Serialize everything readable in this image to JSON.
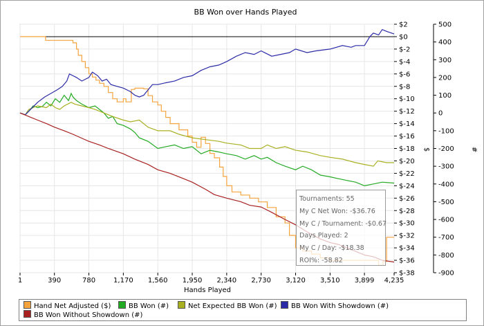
{
  "window": {
    "title": "BB Won over Hands Played"
  },
  "chart_data": {
    "type": "line",
    "title": "BB Won over Hands Played",
    "xlabel": "Hands Played",
    "ylabel_right_dollar": "$",
    "ylabel_right_count": "#",
    "xlim": [
      1,
      4235
    ],
    "x_ticks": [
      1,
      390,
      780,
      1170,
      1560,
      1950,
      2340,
      2730,
      3120,
      3510,
      3899,
      4235
    ],
    "x_tick_labels": [
      "1",
      "390",
      "780",
      "1,170",
      "1,560",
      "1,950",
      "2,340",
      "2,730",
      "3,120",
      "3,510",
      "3,899",
      "4,235"
    ],
    "ylim_dollar": [
      -38,
      2
    ],
    "dollar_ticks": [
      2,
      0,
      -2,
      -4,
      -6,
      -8,
      -10,
      -12,
      -14,
      -16,
      -18,
      -20,
      -22,
      -24,
      -26,
      -28,
      -30,
      -32,
      -34,
      -36,
      -38
    ],
    "dollar_tick_labels": [
      "$2",
      "$0",
      "$-2",
      "$-4",
      "$-6",
      "$-8",
      "$-10",
      "$-12",
      "$-14",
      "$-16",
      "$-18",
      "$-20",
      "$-22",
      "$-24",
      "$-26",
      "$-28",
      "$-30",
      "$-32",
      "$-34",
      "$-36",
      "$-38"
    ],
    "ylim_count": [
      -900,
      500
    ],
    "count_ticks": [
      500,
      400,
      300,
      200,
      100,
      0,
      -100,
      -200,
      -300,
      -400,
      -500,
      -600,
      -700,
      -800,
      -900
    ],
    "count_tick_labels": [
      "500",
      "400",
      "300",
      "200",
      "100",
      "0",
      "-100",
      "-200",
      "-300",
      "-400",
      "-500",
      "-600",
      "-700",
      "-800",
      "-900"
    ],
    "series": [
      {
        "name": "Hand Net Adjusted ($)",
        "axis": "dollar",
        "color": "#f5a33c",
        "step": true,
        "points": [
          [
            1,
            0
          ],
          [
            270,
            0
          ],
          [
            290,
            -0.6
          ],
          [
            580,
            -0.6
          ],
          [
            600,
            -1
          ],
          [
            640,
            -2
          ],
          [
            660,
            -3
          ],
          [
            700,
            -4
          ],
          [
            740,
            -5
          ],
          [
            780,
            -6
          ],
          [
            820,
            -6.5
          ],
          [
            860,
            -7
          ],
          [
            900,
            -7.5
          ],
          [
            950,
            -8
          ],
          [
            1000,
            -9
          ],
          [
            1050,
            -10
          ],
          [
            1100,
            -10.5
          ],
          [
            1170,
            -10
          ],
          [
            1200,
            -10.5
          ],
          [
            1260,
            -8.5
          ],
          [
            1300,
            -8.3
          ],
          [
            1400,
            -8.4
          ],
          [
            1450,
            -9.5
          ],
          [
            1500,
            -10.5
          ],
          [
            1560,
            -11
          ],
          [
            1600,
            -12
          ],
          [
            1650,
            -13
          ],
          [
            1700,
            -14
          ],
          [
            1800,
            -15
          ],
          [
            1900,
            -16
          ],
          [
            1950,
            -17
          ],
          [
            2000,
            -17.8
          ],
          [
            2050,
            -16.2
          ],
          [
            2100,
            -17.2
          ],
          [
            2150,
            -18.8
          ],
          [
            2200,
            -19.5
          ],
          [
            2260,
            -21
          ],
          [
            2300,
            -22.5
          ],
          [
            2340,
            -24
          ],
          [
            2400,
            -25
          ],
          [
            2500,
            -25.5
          ],
          [
            2600,
            -26
          ],
          [
            2700,
            -26.6
          ],
          [
            2800,
            -27.5
          ],
          [
            2900,
            -29
          ],
          [
            3000,
            -30
          ],
          [
            3050,
            -32
          ],
          [
            3120,
            -34
          ],
          [
            3200,
            -34.5
          ],
          [
            3300,
            -35
          ],
          [
            3400,
            -35.6
          ],
          [
            3500,
            -36
          ],
          [
            3700,
            -36
          ],
          [
            3899,
            -36
          ],
          [
            4060,
            -36.8
          ],
          [
            4110,
            -36.2
          ],
          [
            4150,
            -32.3
          ],
          [
            4235,
            -32.3
          ]
        ]
      },
      {
        "name": "BB Won (#)",
        "axis": "count",
        "color": "#22aa22",
        "step": false,
        "points": [
          [
            1,
            0
          ],
          [
            60,
            -10
          ],
          [
            100,
            10
          ],
          [
            150,
            40
          ],
          [
            200,
            30
          ],
          [
            250,
            35
          ],
          [
            300,
            60
          ],
          [
            350,
            40
          ],
          [
            400,
            80
          ],
          [
            450,
            60
          ],
          [
            500,
            100
          ],
          [
            550,
            70
          ],
          [
            580,
            110
          ],
          [
            600,
            90
          ],
          [
            640,
            70
          ],
          [
            700,
            50
          ],
          [
            780,
            30
          ],
          [
            850,
            40
          ],
          [
            900,
            20
          ],
          [
            950,
            0
          ],
          [
            1000,
            -30
          ],
          [
            1050,
            -20
          ],
          [
            1100,
            -60
          ],
          [
            1170,
            -70
          ],
          [
            1250,
            -90
          ],
          [
            1300,
            -110
          ],
          [
            1350,
            -140
          ],
          [
            1450,
            -160
          ],
          [
            1560,
            -200
          ],
          [
            1650,
            -190
          ],
          [
            1750,
            -180
          ],
          [
            1850,
            -200
          ],
          [
            1950,
            -190
          ],
          [
            2050,
            -230
          ],
          [
            2150,
            -210
          ],
          [
            2250,
            -220
          ],
          [
            2340,
            -230
          ],
          [
            2450,
            -240
          ],
          [
            2550,
            -260
          ],
          [
            2650,
            -240
          ],
          [
            2730,
            -260
          ],
          [
            2800,
            -250
          ],
          [
            2900,
            -280
          ],
          [
            3000,
            -300
          ],
          [
            3120,
            -320
          ],
          [
            3200,
            -300
          ],
          [
            3300,
            -320
          ],
          [
            3400,
            -350
          ],
          [
            3510,
            -360
          ],
          [
            3600,
            -370
          ],
          [
            3700,
            -380
          ],
          [
            3800,
            -390
          ],
          [
            3899,
            -410
          ],
          [
            4000,
            -400
          ],
          [
            4100,
            -390
          ],
          [
            4235,
            -395
          ]
        ]
      },
      {
        "name": "Net Expected BB Won (#)",
        "axis": "count",
        "color": "#a8b020",
        "step": false,
        "points": [
          [
            1,
            0
          ],
          [
            60,
            -10
          ],
          [
            100,
            20
          ],
          [
            150,
            30
          ],
          [
            200,
            40
          ],
          [
            300,
            30
          ],
          [
            350,
            50
          ],
          [
            400,
            30
          ],
          [
            450,
            20
          ],
          [
            500,
            40
          ],
          [
            580,
            60
          ],
          [
            620,
            50
          ],
          [
            700,
            40
          ],
          [
            780,
            30
          ],
          [
            850,
            20
          ],
          [
            950,
            0
          ],
          [
            1050,
            -20
          ],
          [
            1170,
            -40
          ],
          [
            1250,
            -50
          ],
          [
            1350,
            -40
          ],
          [
            1450,
            -80
          ],
          [
            1560,
            -100
          ],
          [
            1700,
            -100
          ],
          [
            1800,
            -120
          ],
          [
            1950,
            -140
          ],
          [
            2100,
            -150
          ],
          [
            2250,
            -160
          ],
          [
            2340,
            -170
          ],
          [
            2500,
            -180
          ],
          [
            2600,
            -200
          ],
          [
            2730,
            -200
          ],
          [
            2800,
            -180
          ],
          [
            2900,
            -200
          ],
          [
            3000,
            -190
          ],
          [
            3120,
            -210
          ],
          [
            3250,
            -220
          ],
          [
            3400,
            -240
          ],
          [
            3510,
            -250
          ],
          [
            3650,
            -260
          ],
          [
            3800,
            -280
          ],
          [
            3899,
            -290
          ],
          [
            4000,
            -300
          ],
          [
            4050,
            -270
          ],
          [
            4150,
            -280
          ],
          [
            4235,
            -280
          ]
        ]
      },
      {
        "name": "BB Won With Showdown (#)",
        "axis": "count",
        "color": "#2b2ba8",
        "step": false,
        "points": [
          [
            1,
            0
          ],
          [
            60,
            -10
          ],
          [
            120,
            20
          ],
          [
            200,
            60
          ],
          [
            280,
            90
          ],
          [
            350,
            110
          ],
          [
            420,
            130
          ],
          [
            480,
            150
          ],
          [
            530,
            180
          ],
          [
            560,
            220
          ],
          [
            600,
            210
          ],
          [
            640,
            200
          ],
          [
            700,
            180
          ],
          [
            780,
            200
          ],
          [
            820,
            230
          ],
          [
            880,
            210
          ],
          [
            930,
            180
          ],
          [
            980,
            190
          ],
          [
            1030,
            160
          ],
          [
            1100,
            150
          ],
          [
            1170,
            140
          ],
          [
            1250,
            120
          ],
          [
            1300,
            100
          ],
          [
            1350,
            90
          ],
          [
            1400,
            100
          ],
          [
            1450,
            130
          ],
          [
            1500,
            160
          ],
          [
            1560,
            160
          ],
          [
            1650,
            170
          ],
          [
            1750,
            180
          ],
          [
            1850,
            200
          ],
          [
            1950,
            210
          ],
          [
            2050,
            240
          ],
          [
            2150,
            260
          ],
          [
            2250,
            270
          ],
          [
            2340,
            290
          ],
          [
            2450,
            320
          ],
          [
            2550,
            340
          ],
          [
            2650,
            330
          ],
          [
            2730,
            350
          ],
          [
            2850,
            320
          ],
          [
            2950,
            330
          ],
          [
            3050,
            340
          ],
          [
            3120,
            360
          ],
          [
            3250,
            340
          ],
          [
            3350,
            350
          ],
          [
            3510,
            360
          ],
          [
            3650,
            380
          ],
          [
            3750,
            370
          ],
          [
            3800,
            380
          ],
          [
            3899,
            380
          ],
          [
            3960,
            430
          ],
          [
            4000,
            450
          ],
          [
            4060,
            440
          ],
          [
            4100,
            470
          ],
          [
            4150,
            460
          ],
          [
            4235,
            445
          ]
        ]
      },
      {
        "name": "BB Won Without Showdown (#)",
        "axis": "count",
        "color": "#a82020",
        "step": false,
        "points": [
          [
            1,
            0
          ],
          [
            100,
            -20
          ],
          [
            200,
            -40
          ],
          [
            300,
            -60
          ],
          [
            390,
            -80
          ],
          [
            500,
            -100
          ],
          [
            600,
            -120
          ],
          [
            780,
            -160
          ],
          [
            900,
            -180
          ],
          [
            1000,
            -200
          ],
          [
            1170,
            -230
          ],
          [
            1300,
            -260
          ],
          [
            1450,
            -290
          ],
          [
            1560,
            -320
          ],
          [
            1700,
            -340
          ],
          [
            1850,
            -370
          ],
          [
            1950,
            -390
          ],
          [
            2100,
            -430
          ],
          [
            2200,
            -460
          ],
          [
            2340,
            -480
          ],
          [
            2500,
            -500
          ],
          [
            2600,
            -520
          ],
          [
            2730,
            -530
          ],
          [
            2850,
            -560
          ],
          [
            3000,
            -600
          ],
          [
            3120,
            -630
          ],
          [
            3250,
            -670
          ],
          [
            3400,
            -710
          ],
          [
            3510,
            -730
          ],
          [
            3600,
            -740
          ],
          [
            3700,
            -760
          ],
          [
            3800,
            -780
          ],
          [
            3899,
            -800
          ],
          [
            4000,
            -810
          ],
          [
            4100,
            -830
          ],
          [
            4235,
            -840
          ]
        ]
      }
    ],
    "legend": [
      {
        "label": "Hand Net Adjusted ($)",
        "color": "#f5a33c"
      },
      {
        "label": "BB Won (#)",
        "color": "#22aa22"
      },
      {
        "label": "Net Expected BB Won (#)",
        "color": "#a8b020"
      },
      {
        "label": "BB Won With Showdown (#)",
        "color": "#2b2ba8"
      },
      {
        "label": "BB Won Without Showdown (#)",
        "color": "#a82020"
      }
    ]
  },
  "stats": {
    "tournaments": "Tournaments: 55",
    "net_won": "My C Net Won: -$36.76",
    "per_tournament": "My C / Tournament: -$0.67",
    "days_played": "Days Played: 2",
    "per_day": "My C / Day: -$18.38",
    "roi": "ROI%: -58.82"
  }
}
